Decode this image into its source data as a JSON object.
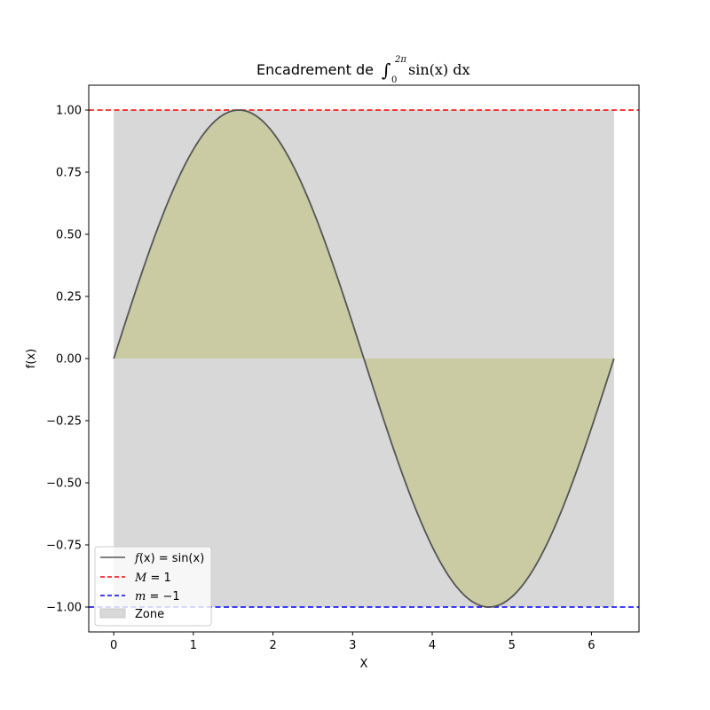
{
  "chart_data": {
    "type": "line",
    "title": {
      "prefix": "Encadrement de ",
      "integral_symbol": "∫",
      "lower": "0",
      "upper": "2π",
      "integrand": "sin(x) dx"
    },
    "xlabel": "X",
    "ylabel": "f(x)",
    "xlim": [
      -0.314,
      6.597
    ],
    "ylim": [
      -1.1,
      1.1
    ],
    "xticks": [
      0,
      1,
      2,
      3,
      4,
      5,
      6
    ],
    "xtick_labels": [
      "0",
      "1",
      "2",
      "3",
      "4",
      "5",
      "6"
    ],
    "yticks": [
      1.0,
      0.75,
      0.5,
      0.25,
      0.0,
      -0.25,
      -0.5,
      -0.75,
      -1.0
    ],
    "ytick_labels": [
      "1.00",
      "0.75",
      "0.50",
      "0.25",
      "0.00",
      "−0.25",
      "−0.50",
      "−0.75",
      "−1.00"
    ],
    "grid": false,
    "legend_position": "lower-left",
    "series": [
      {
        "label": "f(x) = sin(x)",
        "function": "sin(x)",
        "x_range": [
          0,
          6.283
        ],
        "color": "#555555",
        "style": "solid",
        "fill_to_zero": true,
        "fill_color": "#c8c89a"
      },
      {
        "label": "M = 1",
        "y": 1,
        "color": "#ff0000",
        "style": "dashed"
      },
      {
        "label": "m = −1",
        "y": -1,
        "color": "#0000ff",
        "style": "dashed"
      }
    ],
    "zone": {
      "label": "Zone",
      "x_range": [
        0,
        6.283
      ],
      "y_range": [
        -1,
        1
      ],
      "color": "#d8d8d8"
    },
    "legend": [
      {
        "key": "sin",
        "text_before": "f",
        "text_mid": "(x) = sin(x)"
      },
      {
        "key": "M",
        "text_before": "M",
        "text_mid": " = 1"
      },
      {
        "key": "m",
        "text_before": "m",
        "text_mid": " = −1"
      },
      {
        "key": "zone",
        "text_before": "",
        "text_mid": "Zone"
      }
    ]
  }
}
